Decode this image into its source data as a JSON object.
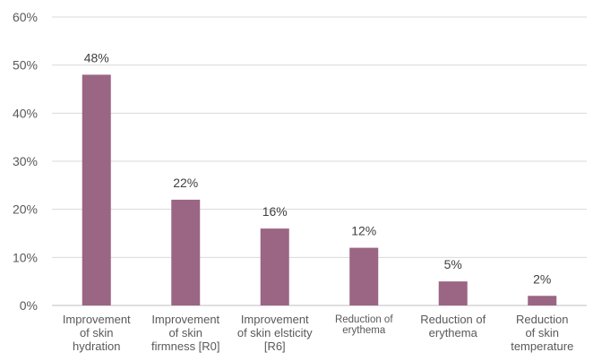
{
  "chart_data": {
    "type": "bar",
    "title": "",
    "xlabel": "",
    "ylabel": "",
    "ylim": [
      0,
      60
    ],
    "y_ticks": [
      0,
      10,
      20,
      30,
      40,
      50,
      60
    ],
    "y_tick_labels": [
      "0%",
      "10%",
      "20%",
      "30%",
      "40%",
      "50%",
      "60%"
    ],
    "grid": true,
    "legend": "none",
    "bar_color": "#9b6584",
    "categories": [
      [
        "Improvement",
        "of skin",
        "hydration"
      ],
      [
        "Improvement",
        "of skin",
        "firmness [R0]"
      ],
      [
        "Improvement",
        "of skin elsticity",
        "[R6]"
      ],
      [
        "Reduction of",
        "erythema"
      ],
      [
        "Reduction of",
        "erythema"
      ],
      [
        "Reduction",
        "of skin",
        "temperature"
      ]
    ],
    "values": [
      48,
      22,
      16,
      12,
      5,
      2
    ],
    "data_labels": [
      "48%",
      "22%",
      "16%",
      "12%",
      "5%",
      "2%"
    ]
  }
}
